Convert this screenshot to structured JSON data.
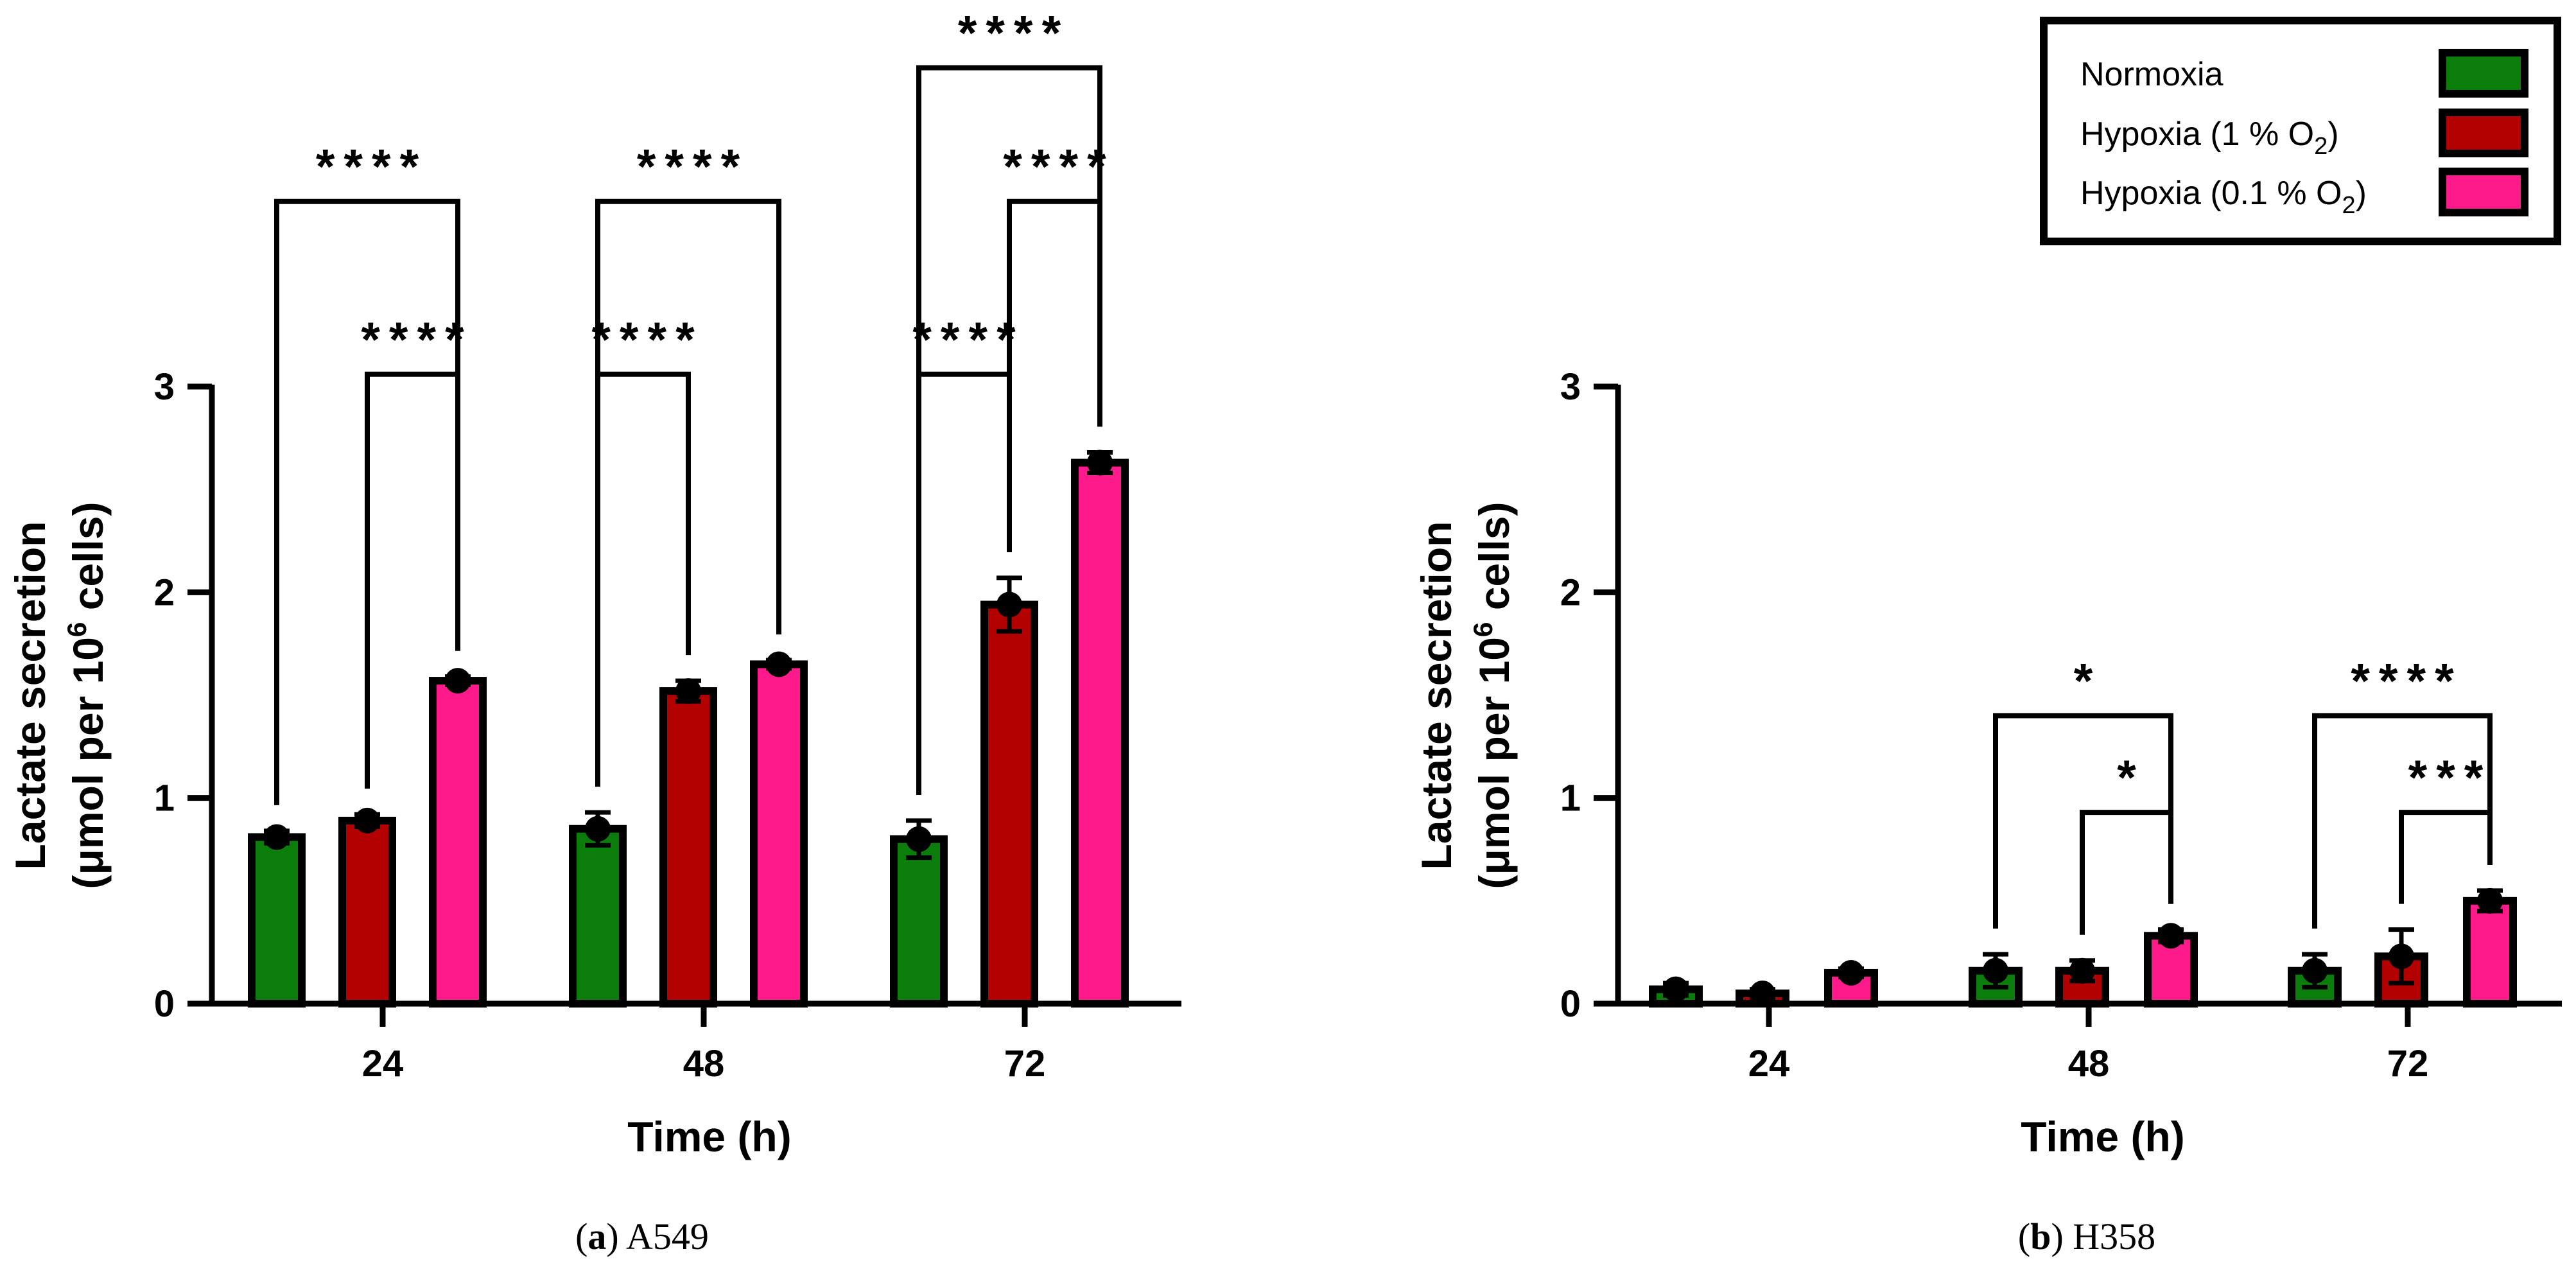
{
  "chart_data": [
    {
      "type": "bar",
      "panel": "a",
      "caption_label": "a",
      "caption_text": "A549",
      "categories": [
        "24",
        "48",
        "72"
      ],
      "series": [
        {
          "name": "Normoxia",
          "color": "#0a7d0a",
          "values": [
            0.81,
            0.85,
            0.8
          ],
          "errors": [
            0.03,
            0.08,
            0.09
          ]
        },
        {
          "name": "Hypoxia (1 % O2)",
          "color": "#b30000",
          "values": [
            0.89,
            1.52,
            1.94
          ],
          "errors": [
            0.03,
            0.05,
            0.13
          ]
        },
        {
          "name": "Hypoxia (0.1 % O2)",
          "color": "#ff1a8c",
          "values": [
            1.57,
            1.65,
            2.63
          ],
          "errors": [
            0.02,
            0.02,
            0.05
          ]
        }
      ],
      "ylim": [
        0,
        3
      ],
      "yticks": [
        "0",
        "1",
        "2",
        "3"
      ],
      "xlabel": "Time (h)",
      "ylabel_line1": "Lactate secretion",
      "ylabel_line2_prefix": "(μmol per 10",
      "ylabel_sup": "6",
      "ylabel_line2_suffix": " cells)",
      "significance": [
        {
          "cat": 0,
          "from": 0,
          "to": 2,
          "stars": "****",
          "level": 3.9
        },
        {
          "cat": 0,
          "from": 1,
          "to": 2,
          "stars": "****",
          "level": 3.06
        },
        {
          "cat": 1,
          "from": 0,
          "to": 2,
          "stars": "****",
          "level": 3.9
        },
        {
          "cat": 1,
          "from": 0,
          "to": 1,
          "stars": "****",
          "level": 3.06
        },
        {
          "cat": 2,
          "from": 0,
          "to": 2,
          "stars": "****",
          "level": 4.55
        },
        {
          "cat": 2,
          "from": 1,
          "to": 2,
          "stars": "****",
          "level": 3.9
        },
        {
          "cat": 2,
          "from": 0,
          "to": 1,
          "stars": "****",
          "level": 3.06
        }
      ]
    },
    {
      "type": "bar",
      "panel": "b",
      "caption_label": "b",
      "caption_text": "H358",
      "categories": [
        "24",
        "48",
        "72"
      ],
      "series": [
        {
          "name": "Normoxia",
          "color": "#0a7d0a",
          "values": [
            0.07,
            0.16,
            0.16
          ],
          "errors": [
            0.03,
            0.08,
            0.08
          ]
        },
        {
          "name": "Hypoxia (1 % O2)",
          "color": "#b30000",
          "values": [
            0.05,
            0.16,
            0.23
          ],
          "errors": [
            0.02,
            0.05,
            0.13
          ]
        },
        {
          "name": "Hypoxia (0.1 % O2)",
          "color": "#ff1a8c",
          "values": [
            0.15,
            0.33,
            0.5
          ],
          "errors": [
            0.02,
            0.03,
            0.05
          ]
        }
      ],
      "ylim": [
        0,
        3
      ],
      "yticks": [
        "0",
        "1",
        "2",
        "3"
      ],
      "xlabel": "Time (h)",
      "ylabel_line1": "Lactate secretion",
      "ylabel_line2_prefix": "(μmol per 10",
      "ylabel_sup": "6",
      "ylabel_line2_suffix": " cells)",
      "significance": [
        {
          "cat": 1,
          "from": 0,
          "to": 2,
          "stars": "*",
          "level": 1.4
        },
        {
          "cat": 1,
          "from": 1,
          "to": 2,
          "stars": "*",
          "level": 0.93
        },
        {
          "cat": 2,
          "from": 0,
          "to": 2,
          "stars": "****",
          "level": 1.4
        },
        {
          "cat": 2,
          "from": 1,
          "to": 2,
          "stars": "***",
          "level": 0.93
        }
      ]
    }
  ],
  "legend": [
    {
      "prefix": "Normoxia",
      "sub": "",
      "suffix": "",
      "color": "#0a7d0a"
    },
    {
      "prefix": "Hypoxia (1 % O",
      "sub": "2",
      "suffix": ")",
      "color": "#b30000"
    },
    {
      "prefix": "Hypoxia (0.1 % O",
      "sub": "2",
      "suffix": ")",
      "color": "#ff1a8c"
    }
  ]
}
